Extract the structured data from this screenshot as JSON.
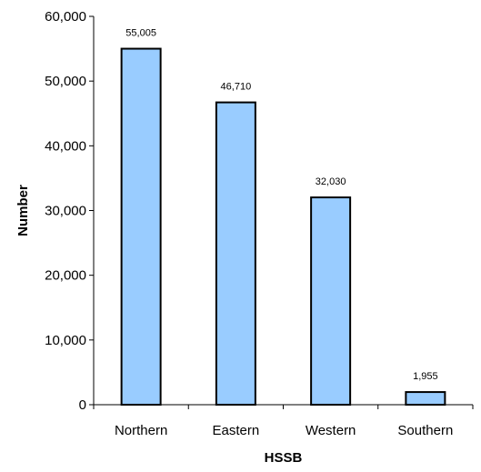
{
  "chart_data": {
    "type": "bar",
    "categories": [
      "Northern",
      "Eastern",
      "Western",
      "Southern"
    ],
    "values": [
      55005,
      46710,
      32030,
      1955
    ],
    "data_labels": [
      "55,005",
      "46,710",
      "32,030",
      "1,955"
    ],
    "xlabel": "HSSB",
    "ylabel": "Number",
    "ylim": [
      0,
      60000
    ],
    "yticks": [
      0,
      10000,
      20000,
      30000,
      40000,
      50000,
      60000
    ],
    "ytick_labels": [
      "0",
      "10,000",
      "20,000",
      "30,000",
      "40,000",
      "50,000",
      "60,000"
    ],
    "grid": false,
    "legend": "none",
    "bar_color": "#99ccff",
    "bar_edge_color": "#000000"
  }
}
